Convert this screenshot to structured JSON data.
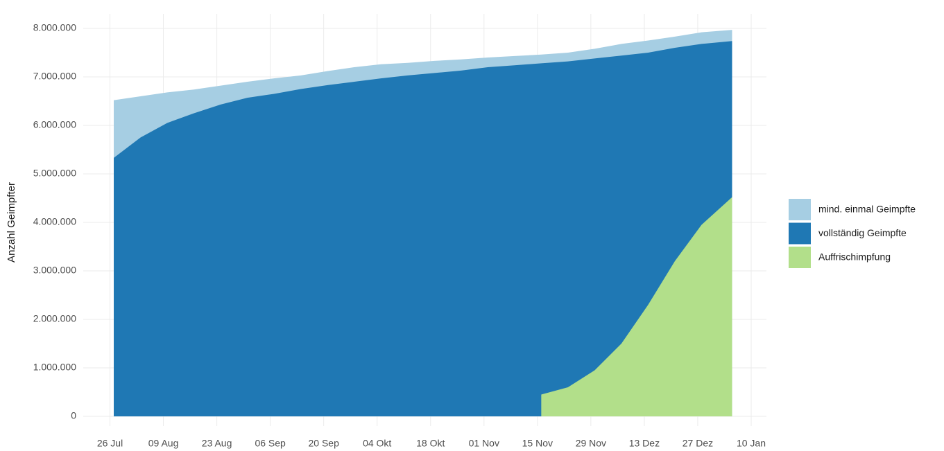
{
  "chart_data": {
    "type": "area",
    "y_label": "Anzahl Geimpfter",
    "x": [
      "07-27",
      "08-03",
      "08-10",
      "08-17",
      "08-24",
      "08-31",
      "09-07",
      "09-14",
      "09-21",
      "09-28",
      "10-05",
      "10-12",
      "10-19",
      "10-26",
      "11-02",
      "11-09",
      "11-16",
      "11-23",
      "11-30",
      "12-07",
      "12-14",
      "12-21",
      "12-28",
      "01-05"
    ],
    "series": [
      {
        "name": "mind. einmal Geimpfte",
        "color": "#a6cee3",
        "values": [
          6520000,
          6600000,
          6680000,
          6740000,
          6820000,
          6900000,
          6970000,
          7030000,
          7120000,
          7200000,
          7260000,
          7290000,
          7330000,
          7360000,
          7400000,
          7430000,
          7460000,
          7500000,
          7580000,
          7680000,
          7750000,
          7830000,
          7920000,
          7970000
        ]
      },
      {
        "name": "vollständig Geimpfte",
        "color": "#1f78b4",
        "values": [
          5330000,
          5750000,
          6050000,
          6250000,
          6430000,
          6570000,
          6650000,
          6750000,
          6830000,
          6900000,
          6970000,
          7030000,
          7080000,
          7130000,
          7200000,
          7240000,
          7280000,
          7320000,
          7380000,
          7440000,
          7500000,
          7600000,
          7680000,
          7740000
        ]
      },
      {
        "name": "Auffrischimpfung",
        "color": "#b2df8a",
        "values": [
          null,
          null,
          null,
          null,
          null,
          null,
          null,
          null,
          null,
          null,
          null,
          null,
          null,
          null,
          null,
          null,
          450000,
          600000,
          950000,
          1500000,
          2300000,
          3200000,
          3950000,
          4520000
        ]
      }
    ],
    "xlim": [
      "07-19",
      "01-14"
    ],
    "xticks": [
      {
        "value": "07-26",
        "label": "26 Jul"
      },
      {
        "value": "08-09",
        "label": "09 Aug"
      },
      {
        "value": "08-23",
        "label": "23 Aug"
      },
      {
        "value": "09-06",
        "label": "06 Sep"
      },
      {
        "value": "09-20",
        "label": "20 Sep"
      },
      {
        "value": "10-04",
        "label": "04 Okt"
      },
      {
        "value": "10-18",
        "label": "18 Okt"
      },
      {
        "value": "11-01",
        "label": "01 Nov"
      },
      {
        "value": "11-15",
        "label": "15 Nov"
      },
      {
        "value": "11-29",
        "label": "29 Nov"
      },
      {
        "value": "12-13",
        "label": "13 Dez"
      },
      {
        "value": "12-27",
        "label": "27 Dez"
      },
      {
        "value": "01-10",
        "label": "10 Jan"
      }
    ],
    "ylim": [
      -200000,
      8300000
    ],
    "yticks": [
      0,
      {
        "value": 1000000,
        "label": "1.000.000"
      },
      {
        "value": 2000000,
        "label": "2.000.000"
      },
      {
        "value": 3000000,
        "label": "3.000.000"
      },
      {
        "value": 4000000,
        "label": "4.000.000"
      },
      {
        "value": 5000000,
        "label": "5.000.000"
      },
      {
        "value": 6000000,
        "label": "6.000.000"
      },
      {
        "value": 7000000,
        "label": "7.000.000"
      },
      {
        "value": 8000000,
        "label": "8.000.000"
      }
    ],
    "grid": true,
    "legend_position": "right"
  }
}
